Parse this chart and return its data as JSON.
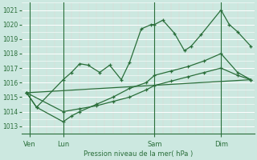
{
  "bg_color": "#cce8e0",
  "grid_color": "#b8d8d0",
  "line_color": "#2a6e3a",
  "ylabel": "Pression niveau de la mer( hPa )",
  "ylim": [
    1012.5,
    1021.5
  ],
  "yticks": [
    1013,
    1014,
    1015,
    1016,
    1017,
    1018,
    1019,
    1020,
    1021
  ],
  "xlim": [
    0,
    14
  ],
  "xtick_labels": [
    "Ven",
    "Lun",
    "Sam",
    "Dim"
  ],
  "xtick_positions": [
    0.5,
    2.5,
    8.0,
    12.0
  ],
  "vline_positions": [
    0.5,
    2.5,
    8.0,
    12.0
  ],
  "series1_x": [
    0.3,
    0.9,
    2.5,
    3.0,
    3.5,
    4.0,
    4.7,
    5.3,
    6.0,
    6.5,
    7.2,
    7.8,
    8.0,
    8.5,
    9.2,
    9.8,
    10.2,
    10.8,
    12.0,
    12.5,
    13.0,
    13.8
  ],
  "series1_y": [
    1015.3,
    1014.3,
    1016.2,
    1016.7,
    1017.3,
    1017.2,
    1016.7,
    1017.2,
    1016.2,
    1017.4,
    1019.7,
    1020.0,
    1020.0,
    1020.3,
    1019.4,
    1018.2,
    1018.5,
    1019.3,
    1021.0,
    1020.0,
    1019.5,
    1018.5
  ],
  "series2_x": [
    0.3,
    0.9,
    2.5,
    3.0,
    3.5,
    4.5,
    5.5,
    6.5,
    7.5,
    8.0,
    9.0,
    10.0,
    11.0,
    12.0,
    13.0,
    13.8
  ],
  "series2_y": [
    1015.3,
    1014.3,
    1013.3,
    1013.7,
    1014.0,
    1014.5,
    1015.0,
    1015.6,
    1016.0,
    1016.5,
    1016.8,
    1017.1,
    1017.5,
    1018.0,
    1016.7,
    1016.2
  ],
  "series3_x": [
    0.3,
    2.5,
    3.5,
    4.5,
    5.5,
    6.5,
    7.5,
    8.0,
    9.0,
    10.0,
    11.0,
    12.0,
    13.0,
    13.8
  ],
  "series3_y": [
    1015.3,
    1014.0,
    1014.2,
    1014.4,
    1014.7,
    1015.0,
    1015.5,
    1015.8,
    1016.1,
    1016.4,
    1016.7,
    1017.0,
    1016.5,
    1016.2
  ],
  "series4_x": [
    0.3,
    13.8
  ],
  "series4_y": [
    1015.3,
    1016.2
  ]
}
